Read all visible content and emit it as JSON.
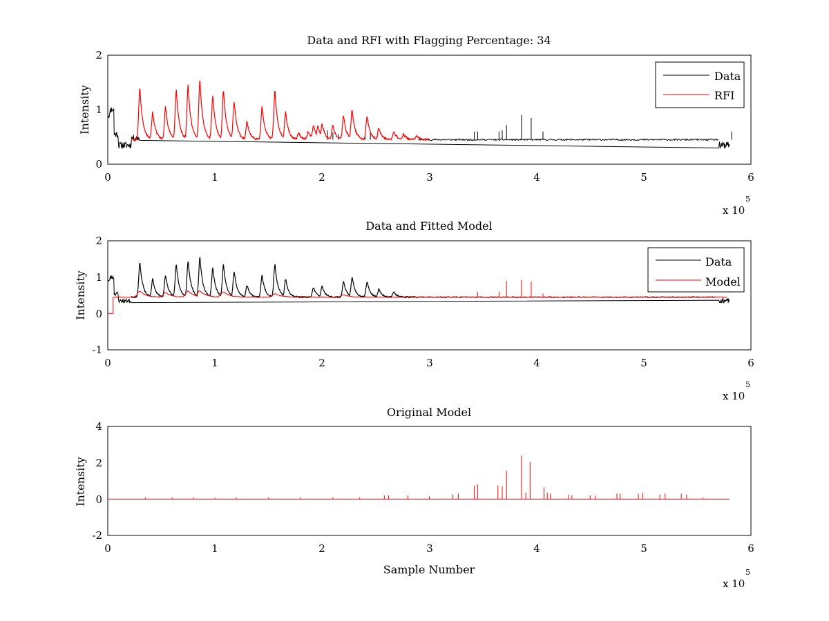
{
  "colors": {
    "data": "#000000",
    "highlight": "#ff0000",
    "axes": "#000000",
    "background": "#ffffff"
  },
  "chart_data": [
    {
      "type": "line",
      "title": "Data and RFI with Flagging Percentage: 34",
      "xlabel": "",
      "ylabel": "Intensity",
      "xlim": [
        0,
        6
      ],
      "ylim": [
        0,
        2
      ],
      "x_ticks": [
        "0",
        "1",
        "2",
        "3",
        "4",
        "5",
        "6"
      ],
      "y_ticks": [
        "0",
        "1",
        "2"
      ],
      "x_exponent": {
        "text": "x 10",
        "power": "5"
      },
      "legend": {
        "position": "top-right",
        "entries": [
          "Data",
          "RFI"
        ]
      },
      "series": [
        {
          "name": "Data",
          "color": "#000000",
          "baseline": 0.45,
          "segments": [
            [
              0,
              0.02,
              0.9
            ],
            [
              0.02,
              0.06,
              1.0
            ],
            [
              0.06,
              0.1,
              0.55
            ],
            [
              0.1,
              0.22,
              0.35
            ],
            [
              0.22,
              0.3,
              0.48
            ],
            [
              5.7,
              5.8,
              0.35
            ]
          ],
          "spikes": [
            [
              2.05,
              0.62
            ],
            [
              2.1,
              0.58
            ],
            [
              2.15,
              0.55
            ],
            [
              2.4,
              0.52
            ],
            [
              2.45,
              0.6
            ],
            [
              3.42,
              0.6
            ],
            [
              3.45,
              0.6
            ],
            [
              3.65,
              0.6
            ],
            [
              3.68,
              0.62
            ],
            [
              3.72,
              0.72
            ],
            [
              3.86,
              0.9
            ],
            [
              3.95,
              0.85
            ],
            [
              4.06,
              0.6
            ],
            [
              5.82,
              0.6
            ]
          ]
        },
        {
          "name": "RFI",
          "color": "#ff0000",
          "baseline": 0.45,
          "x_range": [
            0.22,
            3.0
          ],
          "peaks": [
            [
              0.3,
              1.4
            ],
            [
              0.42,
              0.95
            ],
            [
              0.54,
              1.05
            ],
            [
              0.64,
              1.35
            ],
            [
              0.75,
              1.45
            ],
            [
              0.86,
              1.55
            ],
            [
              0.98,
              1.25
            ],
            [
              1.08,
              1.35
            ],
            [
              1.18,
              1.15
            ],
            [
              1.3,
              0.78
            ],
            [
              1.44,
              1.05
            ],
            [
              1.56,
              1.35
            ],
            [
              1.66,
              0.95
            ],
            [
              1.78,
              0.58
            ],
            [
              1.87,
              0.6
            ],
            [
              1.92,
              0.72
            ],
            [
              1.96,
              0.7
            ],
            [
              2.0,
              0.75
            ],
            [
              2.1,
              0.72
            ],
            [
              2.2,
              0.88
            ],
            [
              2.28,
              1.0
            ],
            [
              2.42,
              0.88
            ],
            [
              2.53,
              0.67
            ],
            [
              2.67,
              0.6
            ],
            [
              2.76,
              0.55
            ],
            [
              2.88,
              0.52
            ],
            [
              3.62,
              0.55
            ]
          ]
        }
      ]
    },
    {
      "type": "line",
      "title": "Data and Fitted Model",
      "xlabel": "",
      "ylabel": "Intensity",
      "xlim": [
        0,
        6
      ],
      "ylim": [
        -1,
        2
      ],
      "x_ticks": [
        "0",
        "1",
        "2",
        "3",
        "4",
        "5",
        "6"
      ],
      "y_ticks": [
        "-1",
        "0",
        "1",
        "2"
      ],
      "x_exponent": {
        "text": "x 10",
        "power": "5"
      },
      "legend": {
        "position": "top-right",
        "entries": [
          "Data",
          "Model"
        ]
      },
      "series": [
        {
          "name": "Data",
          "color": "#000000",
          "baseline": 0.45,
          "segments": [
            [
              0,
              0.02,
              0.9
            ],
            [
              0.02,
              0.06,
              1.0
            ],
            [
              0.06,
              0.1,
              0.55
            ],
            [
              0.1,
              0.22,
              0.35
            ],
            [
              5.7,
              5.8,
              0.35
            ]
          ],
          "peaks": [
            [
              0.3,
              1.4
            ],
            [
              0.42,
              0.95
            ],
            [
              0.54,
              1.05
            ],
            [
              0.64,
              1.35
            ],
            [
              0.75,
              1.45
            ],
            [
              0.86,
              1.55
            ],
            [
              0.98,
              1.25
            ],
            [
              1.08,
              1.35
            ],
            [
              1.18,
              1.15
            ],
            [
              1.3,
              0.78
            ],
            [
              1.44,
              1.05
            ],
            [
              1.56,
              1.35
            ],
            [
              1.66,
              0.95
            ],
            [
              1.92,
              0.72
            ],
            [
              2.0,
              0.75
            ],
            [
              2.2,
              0.88
            ],
            [
              2.28,
              1.0
            ],
            [
              2.42,
              0.88
            ],
            [
              2.53,
              0.67
            ],
            [
              2.67,
              0.6
            ]
          ]
        },
        {
          "name": "Model",
          "color": "#ff0000",
          "baseline": 0.45,
          "start_step": [
            [
              0,
              0.05,
              0
            ],
            [
              0.05,
              0.06,
              0.45
            ]
          ],
          "bumps": [
            [
              0.3,
              0.62
            ],
            [
              0.54,
              0.58
            ],
            [
              0.75,
              0.62
            ],
            [
              0.86,
              0.63
            ],
            [
              1.08,
              0.6
            ],
            [
              1.56,
              0.55
            ],
            [
              2.2,
              0.52
            ]
          ],
          "spikes": [
            [
              3.45,
              0.6
            ],
            [
              3.65,
              0.6
            ],
            [
              3.72,
              0.9
            ],
            [
              3.86,
              0.92
            ],
            [
              3.95,
              0.88
            ],
            [
              4.06,
              0.55
            ]
          ]
        }
      ]
    },
    {
      "type": "line",
      "title": "Original Model",
      "xlabel": "Sample Number",
      "ylabel": "Intensity",
      "xlim": [
        0,
        6
      ],
      "ylim": [
        -2,
        4
      ],
      "x_ticks": [
        "0",
        "1",
        "2",
        "3",
        "4",
        "5",
        "6"
      ],
      "y_ticks": [
        "-2",
        "0",
        "2",
        "4"
      ],
      "x_exponent": {
        "text": "x 10",
        "power": "5"
      },
      "series": [
        {
          "name": "",
          "color": "#ff0000",
          "baseline": 0.0,
          "x_range": [
            0,
            5.8
          ],
          "spikes": [
            [
              0.35,
              0.1
            ],
            [
              0.6,
              0.1
            ],
            [
              0.8,
              0.1
            ],
            [
              1.0,
              0.08
            ],
            [
              1.2,
              0.08
            ],
            [
              1.5,
              0.1
            ],
            [
              1.8,
              0.1
            ],
            [
              2.1,
              0.1
            ],
            [
              2.35,
              0.1
            ],
            [
              2.58,
              0.2
            ],
            [
              2.62,
              0.2
            ],
            [
              2.8,
              0.2
            ],
            [
              3.0,
              0.15
            ],
            [
              3.22,
              0.25
            ],
            [
              3.27,
              0.3
            ],
            [
              3.42,
              0.75
            ],
            [
              3.45,
              0.8
            ],
            [
              3.64,
              0.75
            ],
            [
              3.68,
              0.7
            ],
            [
              3.72,
              1.55
            ],
            [
              3.86,
              2.4
            ],
            [
              3.9,
              0.35
            ],
            [
              3.94,
              2.05
            ],
            [
              4.07,
              0.65
            ],
            [
              4.1,
              0.35
            ],
            [
              4.13,
              0.3
            ],
            [
              4.3,
              0.25
            ],
            [
              4.33,
              0.2
            ],
            [
              4.5,
              0.2
            ],
            [
              4.55,
              0.2
            ],
            [
              4.75,
              0.3
            ],
            [
              4.78,
              0.3
            ],
            [
              4.95,
              0.3
            ],
            [
              4.99,
              0.35
            ],
            [
              5.15,
              0.25
            ],
            [
              5.2,
              0.3
            ],
            [
              5.35,
              0.3
            ],
            [
              5.4,
              0.25
            ],
            [
              5.55,
              0.1
            ]
          ]
        }
      ]
    }
  ]
}
